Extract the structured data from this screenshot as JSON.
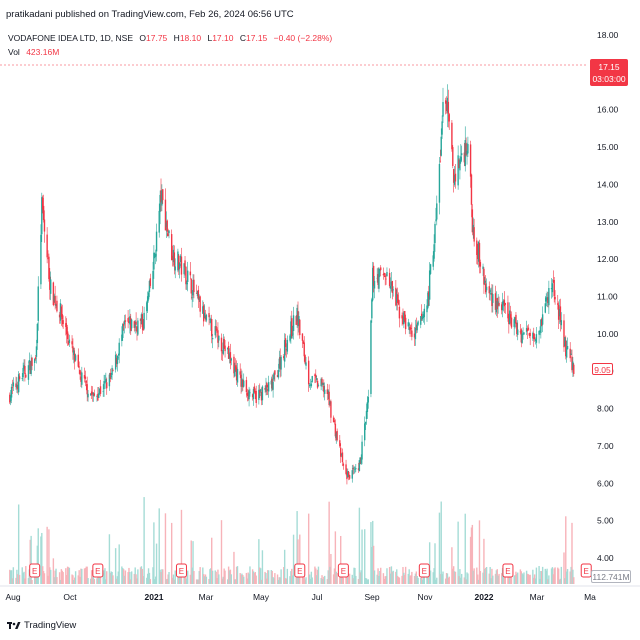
{
  "publisher": "pratikadani published on TradingView.com, Feb 26, 2024 06:56 UTC",
  "legend": {
    "symbol": "VODAFONE IDEA LTD, 1D, NSE",
    "open_label": "O",
    "open": "17.75",
    "high_label": "H",
    "high": "18.10",
    "low_label": "L",
    "low": "17.10",
    "close_label": "C",
    "close": "17.15",
    "change": "−0.40 (−2.28%)",
    "vol_label": "Vol",
    "vol": "423.16M"
  },
  "price_tag": {
    "price": "17.15",
    "countdown": "03:03:00"
  },
  "close_tag": "9.05",
  "volume_tag": "112.741M",
  "footer": {
    "brand": "TradingView"
  },
  "colors": {
    "up": "#26a69a",
    "down": "#f23645",
    "up_vol": "#a5dcd6",
    "down_vol": "#f7b3b9",
    "grid": "#e0e3eb"
  },
  "chart_data": {
    "type": "candlestick",
    "y_ticks": [
      "18.00",
      "17.00",
      "16.00",
      "15.00",
      "14.00",
      "13.00",
      "12.00",
      "11.00",
      "10.00",
      "9.00",
      "8.00",
      "7.00",
      "6.00",
      "5.00",
      "4.00"
    ],
    "ylim": [
      4.0,
      18.0
    ],
    "x_ticks": [
      "Aug",
      "Oct",
      "2021",
      "Mar",
      "May",
      "Jul",
      "Sep",
      "Nov",
      "2022",
      "Mar",
      "Ma"
    ],
    "x_tick_bold": [
      "2021",
      "2022"
    ],
    "x_range_months": [
      "2020-08",
      "2022-05"
    ],
    "earnings_markers": [
      "2020-08-31",
      "2020-11-10",
      "2021-02-12",
      "2021-06-25",
      "2021-08-13",
      "2021-11-12",
      "2022-02-14",
      "2022-05-13"
    ],
    "earnings_label": "E",
    "series_approx": [
      {
        "date": "2020-08-01",
        "close": 8.3
      },
      {
        "date": "2020-08-20",
        "close": 9.0
      },
      {
        "date": "2020-09-01",
        "close": 9.3
      },
      {
        "date": "2020-09-08",
        "close": 13.4
      },
      {
        "date": "2020-09-18",
        "close": 11.2
      },
      {
        "date": "2020-09-30",
        "close": 10.5
      },
      {
        "date": "2020-10-20",
        "close": 8.9
      },
      {
        "date": "2020-11-05",
        "close": 8.3
      },
      {
        "date": "2020-11-25",
        "close": 8.8
      },
      {
        "date": "2020-12-10",
        "close": 10.2
      },
      {
        "date": "2020-12-31",
        "close": 10.3
      },
      {
        "date": "2021-01-10",
        "close": 11.5
      },
      {
        "date": "2021-01-20",
        "close": 13.7
      },
      {
        "date": "2021-02-01",
        "close": 12.2
      },
      {
        "date": "2021-02-20",
        "close": 11.5
      },
      {
        "date": "2021-03-10",
        "close": 10.4
      },
      {
        "date": "2021-03-31",
        "close": 9.7
      },
      {
        "date": "2021-04-20",
        "close": 8.7
      },
      {
        "date": "2021-05-05",
        "close": 8.3
      },
      {
        "date": "2021-05-25",
        "close": 8.6
      },
      {
        "date": "2021-06-10",
        "close": 9.8
      },
      {
        "date": "2021-06-22",
        "close": 10.5
      },
      {
        "date": "2021-07-05",
        "close": 8.8
      },
      {
        "date": "2021-07-25",
        "close": 8.5
      },
      {
        "date": "2021-08-05",
        "close": 7.3
      },
      {
        "date": "2021-08-15",
        "close": 6.2
      },
      {
        "date": "2021-08-30",
        "close": 6.3
      },
      {
        "date": "2021-09-10",
        "close": 8.2
      },
      {
        "date": "2021-09-15",
        "close": 11.5
      },
      {
        "date": "2021-09-30",
        "close": 11.6
      },
      {
        "date": "2021-10-15",
        "close": 10.6
      },
      {
        "date": "2021-11-01",
        "close": 9.9
      },
      {
        "date": "2021-11-15",
        "close": 10.8
      },
      {
        "date": "2021-11-25",
        "close": 13.0
      },
      {
        "date": "2021-12-05",
        "close": 16.7
      },
      {
        "date": "2021-12-15",
        "close": 14.2
      },
      {
        "date": "2021-12-31",
        "close": 15.2
      },
      {
        "date": "2022-01-05",
        "close": 13.0
      },
      {
        "date": "2022-01-20",
        "close": 11.2
      },
      {
        "date": "2022-02-10",
        "close": 10.6
      },
      {
        "date": "2022-03-01",
        "close": 10.0
      },
      {
        "date": "2022-03-20",
        "close": 10.1
      },
      {
        "date": "2022-04-05",
        "close": 11.4
      },
      {
        "date": "2022-04-20",
        "close": 9.6
      },
      {
        "date": "2022-04-30",
        "close": 9.05
      }
    ]
  }
}
